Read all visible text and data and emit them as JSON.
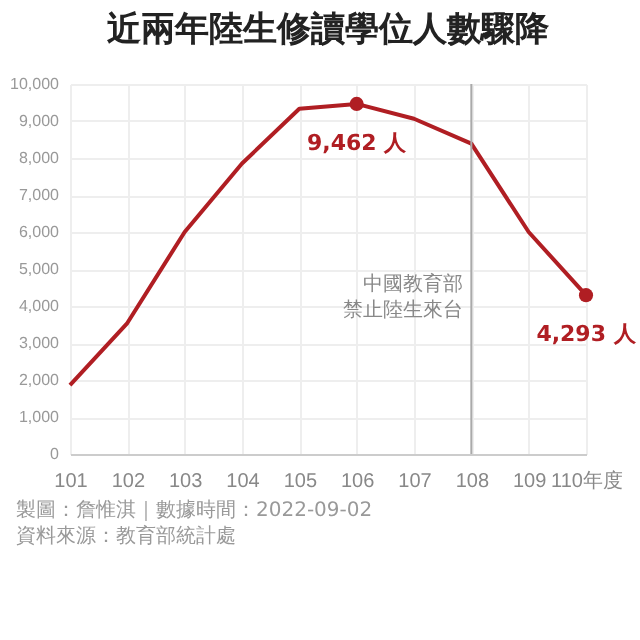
{
  "chart_data": {
    "type": "line",
    "title": "近兩年陸生修讀學位人數驟降",
    "categories": [
      "101",
      "102",
      "103",
      "104",
      "105",
      "106",
      "107",
      "108",
      "109",
      "110年度"
    ],
    "series": [
      {
        "color": "#b01e23",
        "values": [
          1860,
          3540,
          6000,
          7850,
          9330,
          9462,
          9060,
          8390,
          6000,
          4293
        ],
        "value_labels": [
          null,
          null,
          null,
          null,
          null,
          "9,462 人",
          null,
          null,
          null,
          "4,293 人"
        ]
      }
    ],
    "ylim": [
      0,
      10000
    ],
    "yticks": [
      0,
      {
        "value": 1000,
        "label": "1,000"
      },
      {
        "value": 2000,
        "label": "2,000"
      },
      {
        "value": 3000,
        "label": "3,000"
      },
      {
        "value": 4000,
        "label": "4,000"
      },
      {
        "value": 5000,
        "label": "5,000"
      },
      {
        "value": 6000,
        "label": "6,000"
      },
      {
        "value": 7000,
        "label": "7,000"
      },
      {
        "value": 8000,
        "label": "8,000"
      },
      {
        "value": 9000,
        "label": "9,000"
      },
      {
        "value": 10000,
        "label": "10,000"
      }
    ],
    "grid": true,
    "ref_lines": [
      {
        "axis": "x",
        "value": "108",
        "label": "中國教育部禁止陸生來台",
        "color": "#aaaaaa"
      }
    ],
    "annotations": [
      "製圖：詹惟淇｜數據時間：2022-09-02",
      "資料來源：教育部統計處"
    ]
  }
}
